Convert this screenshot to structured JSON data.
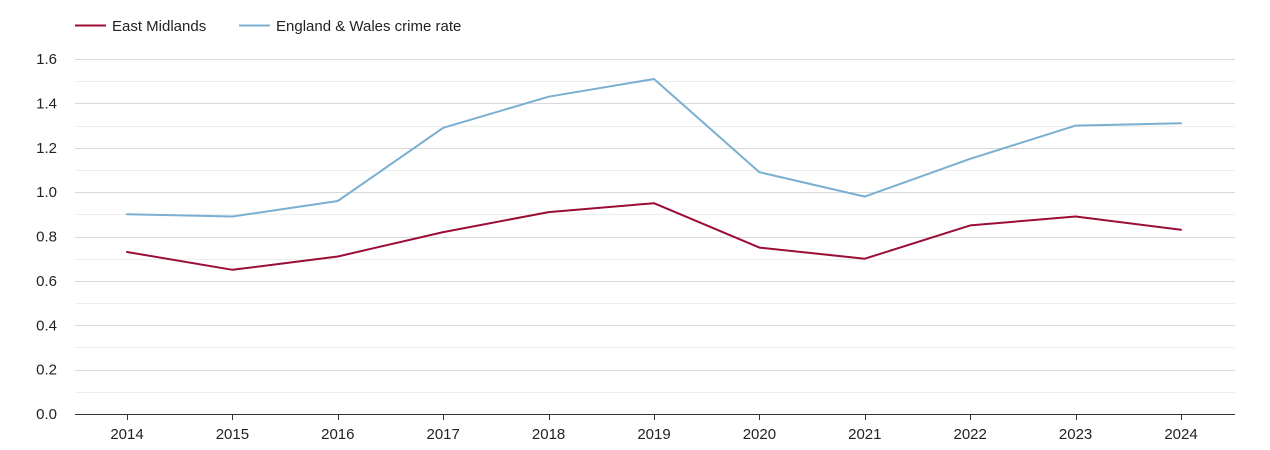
{
  "chart_data": {
    "type": "line",
    "title": "",
    "xlabel": "",
    "ylabel": "",
    "categories": [
      "2014",
      "2015",
      "2016",
      "2017",
      "2018",
      "2019",
      "2020",
      "2021",
      "2022",
      "2023",
      "2024"
    ],
    "ylim": [
      0,
      1.6
    ],
    "y_ticks": [
      "0.0",
      "0.2",
      "0.4",
      "0.6",
      "0.8",
      "1.0",
      "1.2",
      "1.4",
      "1.6"
    ],
    "grid": true,
    "legend_position": "top-left",
    "series": [
      {
        "name": "East Midlands",
        "color": "#9b0d35",
        "values": [
          0.73,
          0.65,
          0.71,
          0.82,
          0.91,
          0.95,
          0.75,
          0.7,
          0.85,
          0.89,
          0.83
        ]
      },
      {
        "name": "England & Wales crime rate",
        "color": "#7aafd1",
        "values": [
          0.9,
          0.89,
          0.96,
          1.29,
          1.43,
          1.51,
          1.09,
          0.98,
          1.15,
          1.3,
          1.31
        ]
      }
    ]
  }
}
